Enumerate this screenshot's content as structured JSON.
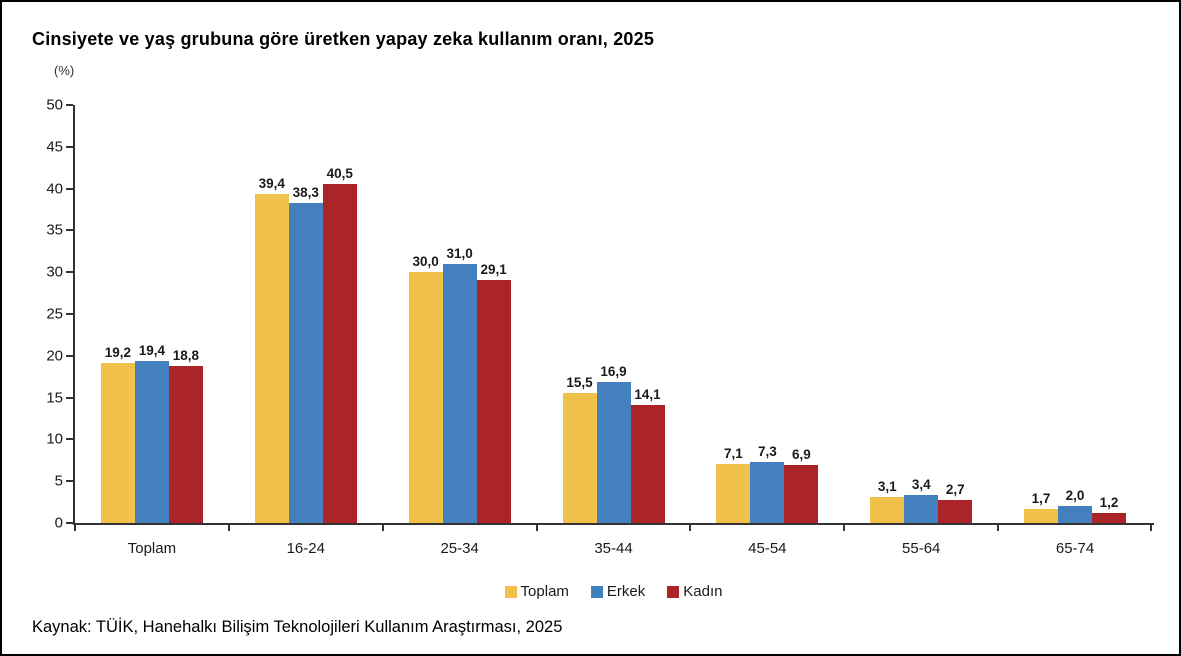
{
  "title": "Cinsiyete ve yaş grubuna göre üretken yapay zeka kullanım oranı, 2025",
  "unit_label": "(%)",
  "source": "Kaynak: TÜİK, Hanehalkı Bilişim Teknolojileri Kullanım Araştırması, 2025",
  "colors": {
    "axis": "#333333",
    "text": "#1a1a1a",
    "background": "#ffffff",
    "border": "#000000"
  },
  "chart_data": {
    "type": "bar",
    "title": "Cinsiyete ve yaş grubuna göre üretken yapay zeka kullanım oranı, 2025",
    "ylabel": "(%)",
    "xlabel": "",
    "categories": [
      "Toplam",
      "16-24",
      "25-34",
      "35-44",
      "45-54",
      "55-64",
      "65-74"
    ],
    "series": [
      {
        "name": "Toplam",
        "color": "#F0C24B",
        "values": [
          19.2,
          39.4,
          30.0,
          15.5,
          7.1,
          3.1,
          1.7
        ]
      },
      {
        "name": "Erkek",
        "color": "#4480BE",
        "values": [
          19.4,
          38.3,
          31.0,
          16.9,
          7.3,
          3.4,
          2.0
        ]
      },
      {
        "name": "Kadın",
        "color": "#AA2428",
        "values": [
          18.8,
          40.5,
          29.1,
          14.1,
          6.9,
          2.7,
          1.2
        ]
      }
    ],
    "value_labels": [
      [
        "19,2",
        "19,4",
        "18,8"
      ],
      [
        "39,4",
        "38,3",
        "40,5"
      ],
      [
        "30,0",
        "31,0",
        "29,1"
      ],
      [
        "15,5",
        "16,9",
        "14,1"
      ],
      [
        "7,1",
        "7,3",
        "6,9"
      ],
      [
        "3,1",
        "3,4",
        "2,7"
      ],
      [
        "1,7",
        "2,0",
        "1,2"
      ]
    ],
    "ylim": [
      0,
      50
    ],
    "ytick_step": 5,
    "grid": false,
    "legend_position": "bottom",
    "decimal_separator": ","
  }
}
